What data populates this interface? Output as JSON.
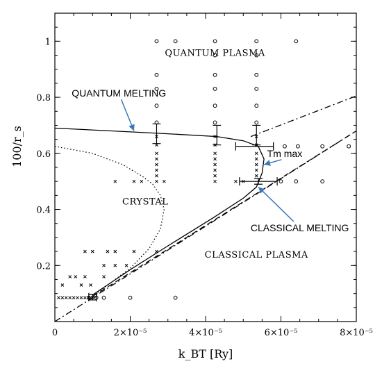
{
  "chart_data": {
    "type": "scatter",
    "xlabel": "k_BT [Ry]",
    "ylabel": "100/r_s",
    "xlim": [
      0,
      8e-05
    ],
    "ylim": [
      0,
      1.1
    ],
    "grid": false,
    "x_ticks": [
      {
        "value": 0,
        "label": "0"
      },
      {
        "value": 2e-05,
        "label": "2×10⁻⁵"
      },
      {
        "value": 4e-05,
        "label": "4×10⁻⁵"
      },
      {
        "value": 6e-05,
        "label": "6×10⁻⁵"
      },
      {
        "value": 8e-05,
        "label": "8×10⁻⁵"
      }
    ],
    "y_ticks": [
      {
        "value": 0.2,
        "label": "0.2"
      },
      {
        "value": 0.4,
        "label": "0.4"
      },
      {
        "value": 0.6,
        "label": "0.6"
      },
      {
        "value": 0.8,
        "label": "0.8"
      },
      {
        "value": 1.0,
        "label": "1"
      }
    ],
    "regions": [
      {
        "label": "QUANTUM PLASMA",
        "x": 4.25e-05,
        "y": 0.96
      },
      {
        "label": "CRYSTAL",
        "x": 2.4e-05,
        "y": 0.43
      },
      {
        "label": "CLASSICAL PLASMA",
        "x": 5.35e-05,
        "y": 0.24
      }
    ],
    "annotations": [
      {
        "label": "QUANTUM MELTING",
        "x": 1.7e-05,
        "y": 0.815,
        "arrow_to": [
          2.1e-05,
          0.68
        ]
      },
      {
        "label": "CLASSICAL MELTING",
        "x": 6.5e-05,
        "y": 0.335,
        "arrow_to": [
          5.4e-05,
          0.48
        ]
      },
      {
        "label": "Tm max",
        "x": 6.1e-05,
        "y": 0.6,
        "arrow_to": [
          5.55e-05,
          0.56
        ]
      }
    ],
    "series": [
      {
        "style": "solid",
        "x": [
          0,
          1.5e-05,
          3e-05,
          4.3e-05,
          5e-05,
          5.4e-05,
          5.55e-05,
          5.5e-05,
          5.35e-05,
          5e-05,
          4.2e-05,
          3e-05,
          2e-05,
          1.5e-05,
          1e-05
        ],
        "y": [
          0.69,
          0.68,
          0.67,
          0.66,
          0.645,
          0.625,
          0.58,
          0.53,
          0.48,
          0.44,
          0.37,
          0.27,
          0.185,
          0.14,
          0.095
        ]
      },
      {
        "style": "dashed",
        "x": [
          1e-05,
          8e-05
        ],
        "y": [
          0.09,
          0.68
        ]
      },
      {
        "style": "dashdot",
        "x": [
          0,
          8e-05
        ],
        "y": [
          0.0,
          0.68
        ]
      },
      {
        "style": "dashdot",
        "x": [
          5.2e-05,
          8e-05
        ],
        "y": [
          0.66,
          0.805
        ]
      },
      {
        "style": "dotted",
        "x": [
          0,
          1e-05,
          1.8e-05,
          2.3e-05,
          2.6e-05,
          2.8e-05,
          2.9e-05,
          2.8e-05,
          2.5e-05,
          2e-05,
          1.5e-05,
          1.1e-05,
          1e-05
        ],
        "y": [
          0.625,
          0.6,
          0.56,
          0.52,
          0.49,
          0.45,
          0.4,
          0.33,
          0.26,
          0.19,
          0.14,
          0.1,
          0.085
        ]
      }
    ],
    "error_bars": [
      {
        "x": 2.7e-05,
        "y": 0.67,
        "x_err": 0,
        "y_err": 0.035
      },
      {
        "x": 4.3e-05,
        "y": 0.665,
        "x_err": 0,
        "y_err": 0.035
      },
      {
        "x": 5.35e-05,
        "y": 0.665,
        "x_err": 0,
        "y_err": 0.035
      },
      {
        "x": 5.3e-05,
        "y": 0.625,
        "x_err": 5e-06,
        "y_err": 0
      },
      {
        "x": 5.4e-05,
        "y": 0.5,
        "x_err": 5e-06,
        "y_err": 0.01
      },
      {
        "x": 1e-05,
        "y": 0.087,
        "x_err": 1e-06,
        "y_err": 0.01
      }
    ],
    "markers_circle": [
      [
        2.7e-05,
        1.0
      ],
      [
        3.2e-05,
        1.0
      ],
      [
        4.25e-05,
        1.0
      ],
      [
        4.25e-05,
        0.95
      ],
      [
        5.35e-05,
        1.0
      ],
      [
        5.35e-05,
        0.95
      ],
      [
        6.4e-05,
        1.0
      ],
      [
        2.7e-05,
        0.88
      ],
      [
        4.25e-05,
        0.88
      ],
      [
        5.35e-05,
        0.88
      ],
      [
        2.7e-05,
        0.83
      ],
      [
        4.25e-05,
        0.83
      ],
      [
        5.35e-05,
        0.83
      ],
      [
        2.7e-05,
        0.77
      ],
      [
        4.25e-05,
        0.77
      ],
      [
        5.35e-05,
        0.77
      ],
      [
        2.7e-05,
        0.71
      ],
      [
        4.25e-05,
        0.71
      ],
      [
        5.35e-05,
        0.71
      ],
      [
        6e-05,
        0.5
      ],
      [
        6.4e-05,
        0.5
      ],
      [
        7.1e-05,
        0.5
      ],
      [
        6.1e-05,
        0.625
      ],
      [
        6.45e-05,
        0.625
      ],
      [
        7.1e-05,
        0.625
      ],
      [
        7.8e-05,
        0.625
      ],
      [
        9e-06,
        0.085
      ],
      [
        1.1e-05,
        0.085
      ],
      [
        1.3e-05,
        0.085
      ],
      [
        2e-05,
        0.085
      ],
      [
        3.2e-05,
        0.085
      ]
    ],
    "markers_cross": [
      [
        2.7e-05,
        0.66
      ],
      [
        2.7e-05,
        0.63
      ],
      [
        2.7e-05,
        0.6
      ],
      [
        2.7e-05,
        0.58
      ],
      [
        2.7e-05,
        0.56
      ],
      [
        2.7e-05,
        0.54
      ],
      [
        2.7e-05,
        0.52
      ],
      [
        2.7e-05,
        0.5
      ],
      [
        4.25e-05,
        0.66
      ],
      [
        4.25e-05,
        0.63
      ],
      [
        4.25e-05,
        0.6
      ],
      [
        4.25e-05,
        0.58
      ],
      [
        4.25e-05,
        0.56
      ],
      [
        4.25e-05,
        0.54
      ],
      [
        4.25e-05,
        0.52
      ],
      [
        4.25e-05,
        0.5
      ],
      [
        5.35e-05,
        0.66
      ],
      [
        5.35e-05,
        0.63
      ],
      [
        5.35e-05,
        0.6
      ],
      [
        5.35e-05,
        0.58
      ],
      [
        5.35e-05,
        0.56
      ],
      [
        5.35e-05,
        0.54
      ],
      [
        5.35e-05,
        0.52
      ],
      [
        1.6e-05,
        0.5
      ],
      [
        2.1e-05,
        0.5
      ],
      [
        2.3e-05,
        0.5
      ],
      [
        2.9e-05,
        0.5
      ],
      [
        4.8e-05,
        0.5
      ],
      [
        5e-05,
        0.5
      ],
      [
        8e-06,
        0.25
      ],
      [
        1e-05,
        0.25
      ],
      [
        1.4e-05,
        0.25
      ],
      [
        1.6e-05,
        0.25
      ],
      [
        2.1e-05,
        0.25
      ],
      [
        2.7e-05,
        0.25
      ],
      [
        1.3e-05,
        0.2
      ],
      [
        1.6e-05,
        0.2
      ],
      [
        1.9e-05,
        0.2
      ],
      [
        4e-06,
        0.16
      ],
      [
        5.5e-06,
        0.16
      ],
      [
        8e-06,
        0.16
      ],
      [
        1.3e-05,
        0.16
      ],
      [
        2e-06,
        0.13
      ],
      [
        7e-06,
        0.13
      ],
      [
        9.5e-06,
        0.13
      ],
      [
        1e-06,
        0.085
      ],
      [
        2e-06,
        0.085
      ],
      [
        3e-06,
        0.085
      ],
      [
        4e-06,
        0.085
      ],
      [
        5e-06,
        0.085
      ],
      [
        6e-06,
        0.085
      ],
      [
        7e-06,
        0.085
      ],
      [
        8e-06,
        0.085
      ],
      [
        9e-06,
        0.085
      ],
      [
        1e-05,
        0.085
      ]
    ],
    "colors": {
      "arrow": "#3b78b8",
      "ink": "#000000"
    }
  }
}
